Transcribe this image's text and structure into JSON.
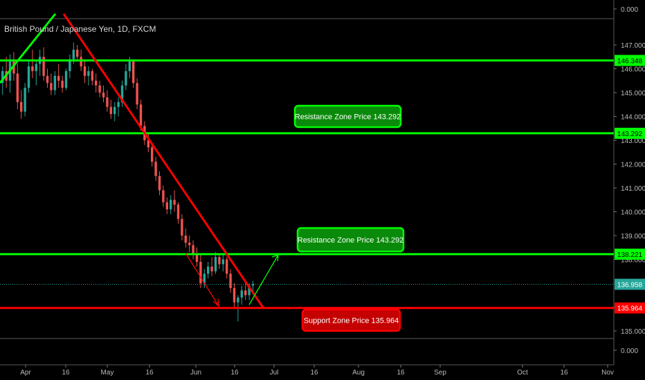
{
  "chart_data": {
    "type": "candlestick",
    "title": "British Pound / Japanese Yen, 1D, FXCM",
    "y_ticks": [
      "135.000",
      "136.000",
      "137.000",
      "138.000",
      "139.000",
      "140.000",
      "141.000",
      "142.000",
      "143.000",
      "144.000",
      "145.000",
      "146.000",
      "147.000"
    ],
    "x_ticks": [
      "Apr",
      "16",
      "May",
      "16",
      "Jun",
      "16",
      "Jul",
      "16",
      "Aug",
      "16",
      "Sep",
      "Oct",
      "16",
      "Nov"
    ],
    "osc_ticks": [
      "0.000",
      "0.000"
    ],
    "ylim": [
      134.55,
      147.85
    ],
    "horizontal_levels": [
      {
        "price": 146.348,
        "label": "146.348",
        "color": "#00ff00"
      },
      {
        "price": 143.292,
        "label": "143.292",
        "color": "#00ff00"
      },
      {
        "price": 138.221,
        "label": "138.221",
        "color": "#00ff00"
      },
      {
        "price": 135.964,
        "label": "135.964",
        "color": "#ff0000"
      }
    ],
    "current_price": {
      "price": 136.958,
      "label": "136.958",
      "color": "#26a69a"
    },
    "annotations": [
      {
        "text": "Resistance Zone Price 143.292",
        "color": "#00ff00"
      },
      {
        "text": "Resistance Zone Price 143.292",
        "color": "#00ff00"
      },
      {
        "text": "Support Zone Price 135.964",
        "color": "#ff0000"
      }
    ],
    "candles": [
      {
        "o": 145.4,
        "h": 146.1,
        "l": 144.9,
        "c": 145.9
      },
      {
        "o": 145.9,
        "h": 146.5,
        "l": 145.2,
        "c": 145.5
      },
      {
        "o": 145.5,
        "h": 146.6,
        "l": 145.0,
        "c": 146.3
      },
      {
        "o": 146.3,
        "h": 146.7,
        "l": 145.5,
        "c": 145.8
      },
      {
        "o": 145.8,
        "h": 146.2,
        "l": 144.3,
        "c": 144.6
      },
      {
        "o": 144.6,
        "h": 145.1,
        "l": 143.9,
        "c": 144.2
      },
      {
        "o": 144.2,
        "h": 145.4,
        "l": 144.0,
        "c": 145.2
      },
      {
        "o": 145.2,
        "h": 146.3,
        "l": 145.0,
        "c": 146.1
      },
      {
        "o": 146.1,
        "h": 146.8,
        "l": 145.6,
        "c": 145.9
      },
      {
        "o": 145.9,
        "h": 146.3,
        "l": 145.3,
        "c": 146.2
      },
      {
        "o": 146.2,
        "h": 146.8,
        "l": 145.7,
        "c": 146.5
      },
      {
        "o": 146.5,
        "h": 146.9,
        "l": 145.5,
        "c": 145.7
      },
      {
        "o": 145.7,
        "h": 146.0,
        "l": 145.2,
        "c": 145.4
      },
      {
        "o": 145.4,
        "h": 145.8,
        "l": 144.9,
        "c": 145.1
      },
      {
        "o": 145.1,
        "h": 145.9,
        "l": 144.9,
        "c": 145.7
      },
      {
        "o": 145.7,
        "h": 146.2,
        "l": 145.2,
        "c": 145.5
      },
      {
        "o": 145.5,
        "h": 145.7,
        "l": 145.0,
        "c": 145.2
      },
      {
        "o": 145.2,
        "h": 146.0,
        "l": 145.1,
        "c": 145.9
      },
      {
        "o": 145.9,
        "h": 146.6,
        "l": 145.6,
        "c": 146.4
      },
      {
        "o": 146.4,
        "h": 147.1,
        "l": 146.2,
        "c": 146.8
      },
      {
        "o": 146.8,
        "h": 147.0,
        "l": 146.3,
        "c": 146.5
      },
      {
        "o": 146.5,
        "h": 146.8,
        "l": 145.9,
        "c": 146.1
      },
      {
        "o": 146.1,
        "h": 146.4,
        "l": 145.4,
        "c": 145.7
      },
      {
        "o": 145.7,
        "h": 146.1,
        "l": 145.3,
        "c": 145.9
      },
      {
        "o": 145.9,
        "h": 146.0,
        "l": 145.3,
        "c": 145.5
      },
      {
        "o": 145.5,
        "h": 145.8,
        "l": 145.0,
        "c": 145.3
      },
      {
        "o": 145.3,
        "h": 145.5,
        "l": 144.8,
        "c": 145.0
      },
      {
        "o": 145.0,
        "h": 145.3,
        "l": 144.6,
        "c": 144.8
      },
      {
        "o": 144.8,
        "h": 145.1,
        "l": 144.2,
        "c": 144.4
      },
      {
        "o": 144.4,
        "h": 144.7,
        "l": 143.9,
        "c": 144.1
      },
      {
        "o": 144.1,
        "h": 144.6,
        "l": 143.8,
        "c": 144.4
      },
      {
        "o": 144.4,
        "h": 144.8,
        "l": 144.0,
        "c": 144.6
      },
      {
        "o": 144.6,
        "h": 145.5,
        "l": 144.4,
        "c": 145.3
      },
      {
        "o": 145.3,
        "h": 146.2,
        "l": 145.1,
        "c": 145.9
      },
      {
        "o": 145.9,
        "h": 146.5,
        "l": 145.6,
        "c": 146.3
      },
      {
        "o": 146.3,
        "h": 146.4,
        "l": 145.2,
        "c": 145.4
      },
      {
        "o": 145.4,
        "h": 145.6,
        "l": 144.3,
        "c": 144.5
      },
      {
        "o": 144.5,
        "h": 144.7,
        "l": 143.4,
        "c": 143.6
      },
      {
        "o": 143.6,
        "h": 143.8,
        "l": 142.8,
        "c": 143.0
      },
      {
        "o": 143.0,
        "h": 143.3,
        "l": 142.5,
        "c": 142.7
      },
      {
        "o": 142.7,
        "h": 142.9,
        "l": 141.9,
        "c": 142.1
      },
      {
        "o": 142.1,
        "h": 142.3,
        "l": 141.3,
        "c": 141.5
      },
      {
        "o": 141.5,
        "h": 141.7,
        "l": 140.7,
        "c": 140.9
      },
      {
        "o": 140.9,
        "h": 141.1,
        "l": 140.2,
        "c": 140.4
      },
      {
        "o": 140.4,
        "h": 140.6,
        "l": 139.9,
        "c": 140.1
      },
      {
        "o": 140.1,
        "h": 140.7,
        "l": 139.9,
        "c": 140.5
      },
      {
        "o": 140.5,
        "h": 140.9,
        "l": 140.0,
        "c": 140.3
      },
      {
        "o": 140.3,
        "h": 140.4,
        "l": 139.5,
        "c": 139.7
      },
      {
        "o": 139.7,
        "h": 139.9,
        "l": 138.8,
        "c": 139.0
      },
      {
        "o": 139.0,
        "h": 139.3,
        "l": 138.5,
        "c": 138.7
      },
      {
        "o": 138.7,
        "h": 139.0,
        "l": 138.3,
        "c": 138.6
      },
      {
        "o": 138.6,
        "h": 138.8,
        "l": 138.0,
        "c": 138.2
      },
      {
        "o": 138.2,
        "h": 138.5,
        "l": 137.7,
        "c": 137.9
      },
      {
        "o": 137.9,
        "h": 138.2,
        "l": 136.8,
        "c": 137.0
      },
      {
        "o": 137.0,
        "h": 137.6,
        "l": 136.8,
        "c": 137.4
      },
      {
        "o": 137.4,
        "h": 137.9,
        "l": 137.2,
        "c": 137.7
      },
      {
        "o": 137.7,
        "h": 138.1,
        "l": 137.3,
        "c": 137.5
      },
      {
        "o": 137.5,
        "h": 138.3,
        "l": 137.4,
        "c": 138.1
      },
      {
        "o": 138.1,
        "h": 138.2,
        "l": 137.6,
        "c": 137.8
      },
      {
        "o": 137.8,
        "h": 138.2,
        "l": 137.5,
        "c": 138.0
      },
      {
        "o": 138.0,
        "h": 138.1,
        "l": 137.2,
        "c": 137.4
      },
      {
        "o": 137.4,
        "h": 137.6,
        "l": 136.6,
        "c": 136.8
      },
      {
        "o": 136.8,
        "h": 137.0,
        "l": 136.0,
        "c": 136.2
      },
      {
        "o": 136.2,
        "h": 136.5,
        "l": 135.4,
        "c": 136.4
      },
      {
        "o": 136.4,
        "h": 136.9,
        "l": 136.1,
        "c": 136.7
      },
      {
        "o": 136.7,
        "h": 137.0,
        "l": 136.3,
        "c": 136.5
      },
      {
        "o": 136.5,
        "h": 137.0,
        "l": 136.3,
        "c": 136.9
      },
      {
        "o": 136.9,
        "h": 137.1,
        "l": 136.6,
        "c": 136.96
      }
    ]
  }
}
